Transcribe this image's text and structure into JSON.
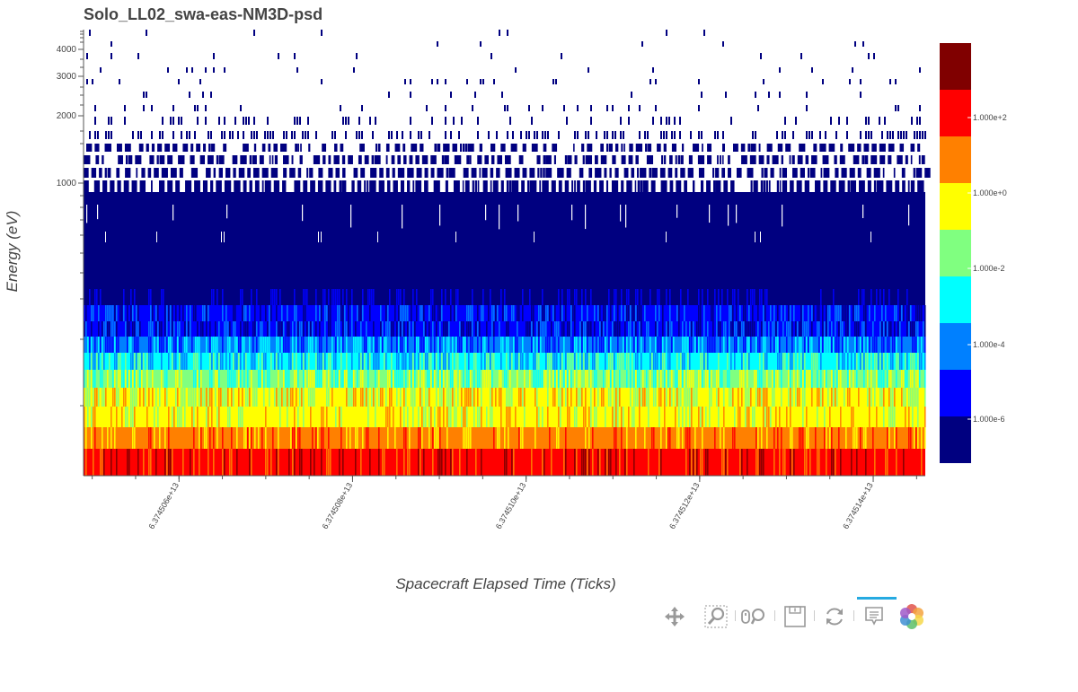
{
  "chart_data": {
    "type": "heatmap",
    "title": "Solo_LL02_swa-eas-NM3D-psd",
    "xlabel": "Spacecraft Elapsed Time (Ticks)",
    "ylabel": "Energy (eV)",
    "xlim": [
      63745049000000,
      63745146000000
    ],
    "x_ticks": [
      {
        "value": 63745060000000,
        "label": "6.374506e+13"
      },
      {
        "value": 63745080000000,
        "label": "6.374508e+13"
      },
      {
        "value": 63745100000000,
        "label": "6.374510e+13"
      },
      {
        "value": 63745120000000,
        "label": "6.374512e+13"
      },
      {
        "value": 63745140000000,
        "label": "6.374514e+13"
      }
    ],
    "y_scale": "log",
    "y_tick_labels": [
      "1000",
      "2000",
      "3000",
      "4000"
    ],
    "colorbar": {
      "scale": "log",
      "colors": [
        "#000080",
        "#0000ff",
        "#0080ff",
        "#00ffff",
        "#80ff80",
        "#ffff00",
        "#ff8000",
        "#ff0000",
        "#800000"
      ],
      "tick_labels": [
        "1.000e-6",
        "1.000e-4",
        "1.000e-2",
        "1.000e+0",
        "1.000e+2"
      ]
    }
  },
  "toolbar": {
    "tools": [
      "pan-icon",
      "box-zoom-icon",
      "wheel-zoom-icon",
      "save-icon",
      "reset-icon",
      "hover-icon",
      "bokeh-logo"
    ]
  }
}
